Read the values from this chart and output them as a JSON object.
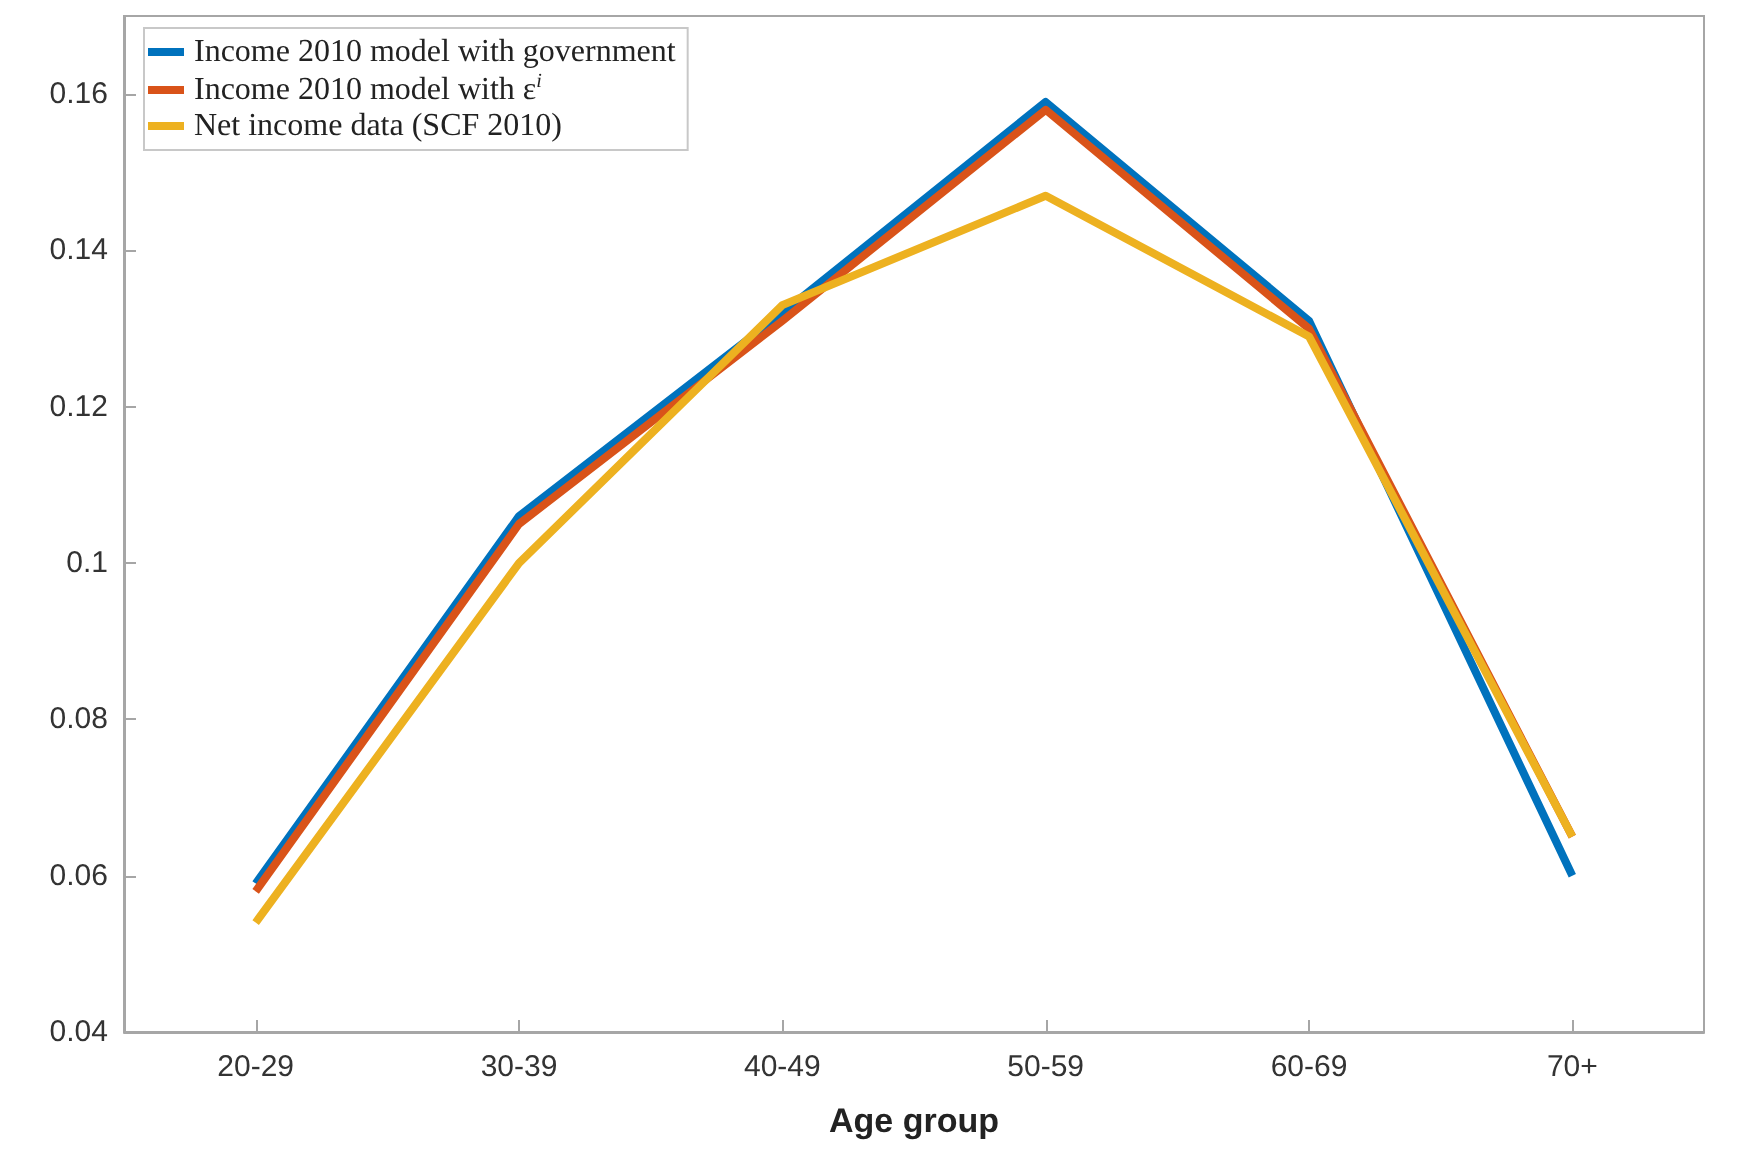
{
  "chart_data": {
    "type": "line",
    "xlabel": "Age group",
    "categories": [
      "20-29",
      "30-39",
      "40-49",
      "50-59",
      "60-69",
      "70+"
    ],
    "series": [
      {
        "name": "Income 2010 model with government",
        "color": "#0072bd",
        "values": [
          0.059,
          0.106,
          0.132,
          0.159,
          0.131,
          0.06
        ]
      },
      {
        "name": "Income 2010 model with ε$^{i}$",
        "color": "#d95319",
        "values": [
          0.058,
          0.105,
          0.131,
          0.158,
          0.13,
          0.065
        ]
      },
      {
        "name": "Net income data (SCF 2010)",
        "color": "#edb120",
        "values": [
          0.054,
          0.1,
          0.133,
          0.147,
          0.129,
          0.065
        ]
      }
    ],
    "ylim": [
      0.04,
      0.17
    ],
    "yticks": [
      0.04,
      0.06,
      0.08,
      0.1,
      0.12,
      0.14,
      0.16
    ],
    "grid": false,
    "legend": "top left",
    "marker": "none",
    "line_style": "solid"
  }
}
